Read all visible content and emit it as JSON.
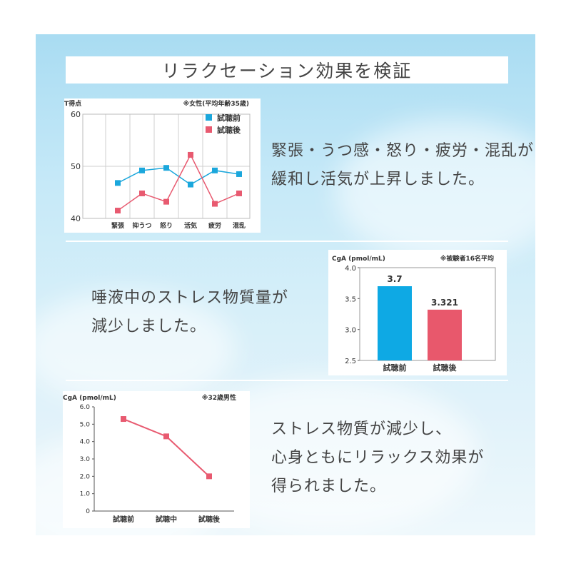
{
  "title": "リラクセーション効果を検証",
  "section1": {
    "caption_lines": [
      "緊張・うつ感・怒り・疲労・混乱が",
      "緩和し活気が上昇しました。"
    ],
    "chart_data": {
      "type": "line",
      "ylabel": "T得点",
      "note": "※女性(平均年齢35歳)",
      "categories": [
        "緊張",
        "抑うつ",
        "怒り",
        "活気",
        "疲労",
        "混乱"
      ],
      "yticks": [
        "60",
        "50",
        "40"
      ],
      "ylim": [
        40,
        60
      ],
      "series": [
        {
          "name": "試聴前",
          "color": "#1ba7dc",
          "values": [
            46.8,
            49.2,
            49.7,
            46.5,
            49.2,
            48.5
          ]
        },
        {
          "name": "試聴後",
          "color": "#e85a70",
          "values": [
            41.5,
            44.8,
            43.2,
            52.2,
            42.8,
            44.8
          ]
        }
      ]
    }
  },
  "section2": {
    "caption_lines": [
      "唾液中のストレス物質量が",
      "減少しました。"
    ],
    "chart_data": {
      "type": "bar",
      "ylabel": "CgA (pmol/mL)",
      "note": "※被験者16名平均",
      "categories": [
        "試聴前",
        "試聴後"
      ],
      "values": [
        3.7,
        3.321
      ],
      "value_labels": [
        "3.7",
        "3.321"
      ],
      "colors": [
        "#0ea9e4",
        "#e8586c"
      ],
      "yticks": [
        "4.0",
        "3.5",
        "3.0",
        "2.5"
      ],
      "ylim": [
        2.5,
        4.0
      ]
    }
  },
  "section3": {
    "caption_lines": [
      "ストレス物質が減少し、",
      "心身ともにリラックス効果が",
      "得られました。"
    ],
    "chart_data": {
      "type": "line",
      "ylabel": "CgA (pmol/mL)",
      "note": "※32歳男性",
      "categories": [
        "試聴前",
        "試聴中",
        "試聴後"
      ],
      "values": [
        5.3,
        4.3,
        2.0
      ],
      "color": "#e85a70",
      "yticks": [
        "6.0",
        "5.0",
        "4.0",
        "3.0",
        "2.0",
        "1.0",
        "0"
      ],
      "ylim": [
        0,
        6
      ]
    }
  }
}
